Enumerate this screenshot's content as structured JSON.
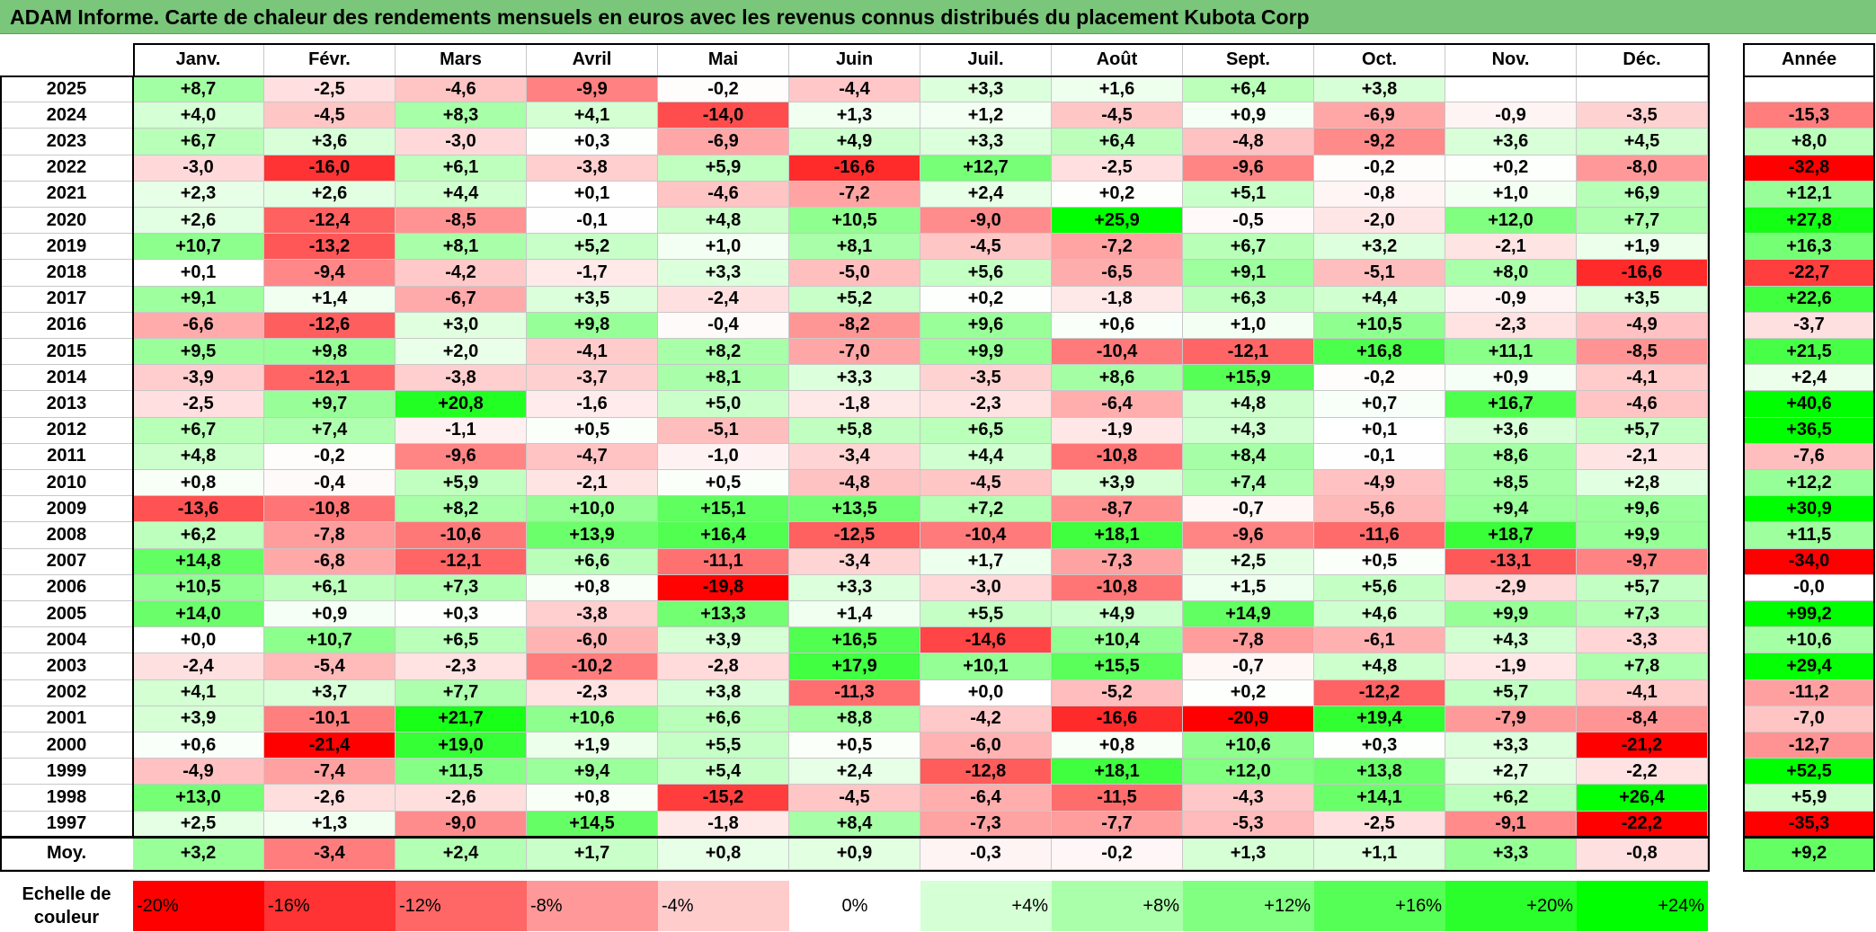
{
  "title": "ADAM Informe. Carte de chaleur des rendements mensuels en euros avec les revenus connus distribués du placement Kubota Corp",
  "chart_data": {
    "type": "heatmap",
    "columns": [
      "Janv.",
      "Févr.",
      "Mars",
      "Avril",
      "Mai",
      "Juin",
      "Juil.",
      "Août",
      "Sept.",
      "Oct.",
      "Nov.",
      "Déc."
    ],
    "year_column_label": "Année",
    "rows": [
      {
        "year": "2025",
        "months": [
          "+8,7",
          "-2,5",
          "-4,6",
          "-9,9",
          "-0,2",
          "-4,4",
          "+3,3",
          "+1,6",
          "+6,4",
          "+3,8",
          "",
          ""
        ],
        "annual": ""
      },
      {
        "year": "2024",
        "months": [
          "+4,0",
          "-4,5",
          "+8,3",
          "+4,1",
          "-14,0",
          "+1,3",
          "+1,2",
          "-4,5",
          "+0,9",
          "-6,9",
          "-0,9",
          "-3,5"
        ],
        "annual": "-15,3"
      },
      {
        "year": "2023",
        "months": [
          "+6,7",
          "+3,6",
          "-3,0",
          "+0,3",
          "-6,9",
          "+4,9",
          "+3,3",
          "+6,4",
          "-4,8",
          "-9,2",
          "+3,6",
          "+4,5"
        ],
        "annual": "+8,0"
      },
      {
        "year": "2022",
        "months": [
          "-3,0",
          "-16,0",
          "+6,1",
          "-3,8",
          "+5,9",
          "-16,6",
          "+12,7",
          "-2,5",
          "-9,6",
          "-0,2",
          "+0,2",
          "-8,0"
        ],
        "annual": "-32,8"
      },
      {
        "year": "2021",
        "months": [
          "+2,3",
          "+2,6",
          "+4,4",
          "+0,1",
          "-4,6",
          "-7,2",
          "+2,4",
          "+0,2",
          "+5,1",
          "-0,8",
          "+1,0",
          "+6,9"
        ],
        "annual": "+12,1"
      },
      {
        "year": "2020",
        "months": [
          "+2,6",
          "-12,4",
          "-8,5",
          "-0,1",
          "+4,8",
          "+10,5",
          "-9,0",
          "+25,9",
          "-0,5",
          "-2,0",
          "+12,0",
          "+7,7"
        ],
        "annual": "+27,8"
      },
      {
        "year": "2019",
        "months": [
          "+10,7",
          "-13,2",
          "+8,1",
          "+5,2",
          "+1,0",
          "+8,1",
          "-4,5",
          "-7,2",
          "+6,7",
          "+3,2",
          "-2,1",
          "+1,9"
        ],
        "annual": "+16,3"
      },
      {
        "year": "2018",
        "months": [
          "+0,1",
          "-9,4",
          "-4,2",
          "-1,7",
          "+3,3",
          "-5,0",
          "+5,6",
          "-6,5",
          "+9,1",
          "-5,1",
          "+8,0",
          "-16,6"
        ],
        "annual": "-22,7"
      },
      {
        "year": "2017",
        "months": [
          "+9,1",
          "+1,4",
          "-6,7",
          "+3,5",
          "-2,4",
          "+5,2",
          "+0,2",
          "-1,8",
          "+6,3",
          "+4,4",
          "-0,9",
          "+3,5"
        ],
        "annual": "+22,6"
      },
      {
        "year": "2016",
        "months": [
          "-6,6",
          "-12,6",
          "+3,0",
          "+9,8",
          "-0,4",
          "-8,2",
          "+9,6",
          "+0,6",
          "+1,0",
          "+10,5",
          "-2,3",
          "-4,9"
        ],
        "annual": "-3,7"
      },
      {
        "year": "2015",
        "months": [
          "+9,5",
          "+9,8",
          "+2,0",
          "-4,1",
          "+8,2",
          "-7,0",
          "+9,9",
          "-10,4",
          "-12,1",
          "+16,8",
          "+11,1",
          "-8,5"
        ],
        "annual": "+21,5"
      },
      {
        "year": "2014",
        "months": [
          "-3,9",
          "-12,1",
          "-3,8",
          "-3,7",
          "+8,1",
          "+3,3",
          "-3,5",
          "+8,6",
          "+15,9",
          "-0,2",
          "+0,9",
          "-4,1"
        ],
        "annual": "+2,4"
      },
      {
        "year": "2013",
        "months": [
          "-2,5",
          "+9,7",
          "+20,8",
          "-1,6",
          "+5,0",
          "-1,8",
          "-2,3",
          "-6,4",
          "+4,8",
          "+0,7",
          "+16,7",
          "-4,6"
        ],
        "annual": "+40,6"
      },
      {
        "year": "2012",
        "months": [
          "+6,7",
          "+7,4",
          "-1,1",
          "+0,5",
          "-5,1",
          "+5,8",
          "+6,5",
          "-1,9",
          "+4,3",
          "+0,1",
          "+3,6",
          "+5,7"
        ],
        "annual": "+36,5"
      },
      {
        "year": "2011",
        "months": [
          "+4,8",
          "-0,2",
          "-9,6",
          "-4,7",
          "-1,0",
          "-3,4",
          "+4,4",
          "-10,8",
          "+8,4",
          "-0,1",
          "+8,6",
          "-2,1"
        ],
        "annual": "-7,6"
      },
      {
        "year": "2010",
        "months": [
          "+0,8",
          "-0,4",
          "+5,9",
          "-2,1",
          "+0,5",
          "-4,8",
          "-4,5",
          "+3,9",
          "+7,4",
          "-4,9",
          "+8,5",
          "+2,8"
        ],
        "annual": "+12,2"
      },
      {
        "year": "2009",
        "months": [
          "-13,6",
          "-10,8",
          "+8,2",
          "+10,0",
          "+15,1",
          "+13,5",
          "+7,2",
          "-8,7",
          "-0,7",
          "-5,6",
          "+9,4",
          "+9,6"
        ],
        "annual": "+30,9"
      },
      {
        "year": "2008",
        "months": [
          "+6,2",
          "-7,8",
          "-10,6",
          "+13,9",
          "+16,4",
          "-12,5",
          "-10,4",
          "+18,1",
          "-9,6",
          "-11,6",
          "+18,7",
          "+9,9"
        ],
        "annual": "+11,5"
      },
      {
        "year": "2007",
        "months": [
          "+14,8",
          "-6,8",
          "-12,1",
          "+6,6",
          "-11,1",
          "-3,4",
          "+1,7",
          "-7,3",
          "+2,5",
          "+0,5",
          "-13,1",
          "-9,7"
        ],
        "annual": "-34,0"
      },
      {
        "year": "2006",
        "months": [
          "+10,5",
          "+6,1",
          "+7,3",
          "+0,8",
          "-19,8",
          "+3,3",
          "-3,0",
          "-10,8",
          "+1,5",
          "+5,6",
          "-2,9",
          "+5,7"
        ],
        "annual": "-0,0"
      },
      {
        "year": "2005",
        "months": [
          "+14,0",
          "+0,9",
          "+0,3",
          "-3,8",
          "+13,3",
          "+1,4",
          "+5,5",
          "+4,9",
          "+14,9",
          "+4,6",
          "+9,9",
          "+7,3"
        ],
        "annual": "+99,2"
      },
      {
        "year": "2004",
        "months": [
          "+0,0",
          "+10,7",
          "+6,5",
          "-6,0",
          "+3,9",
          "+16,5",
          "-14,6",
          "+10,4",
          "-7,8",
          "-6,1",
          "+4,3",
          "-3,3"
        ],
        "annual": "+10,6"
      },
      {
        "year": "2003",
        "months": [
          "-2,4",
          "-5,4",
          "-2,3",
          "-10,2",
          "-2,8",
          "+17,9",
          "+10,1",
          "+15,5",
          "-0,7",
          "+4,8",
          "-1,9",
          "+7,8"
        ],
        "annual": "+29,4"
      },
      {
        "year": "2002",
        "months": [
          "+4,1",
          "+3,7",
          "+7,7",
          "-2,3",
          "+3,8",
          "-11,3",
          "+0,0",
          "-5,2",
          "+0,2",
          "-12,2",
          "+5,7",
          "-4,1"
        ],
        "annual": "-11,2"
      },
      {
        "year": "2001",
        "months": [
          "+3,9",
          "-10,1",
          "+21,7",
          "+10,6",
          "+6,6",
          "+8,8",
          "-4,2",
          "-16,6",
          "-20,9",
          "+19,4",
          "-7,9",
          "-8,4"
        ],
        "annual": "-7,0"
      },
      {
        "year": "2000",
        "months": [
          "+0,6",
          "-21,4",
          "+19,0",
          "+1,9",
          "+5,5",
          "+0,5",
          "-6,0",
          "+0,8",
          "+10,6",
          "+0,3",
          "+3,3",
          "-21,2"
        ],
        "annual": "-12,7"
      },
      {
        "year": "1999",
        "months": [
          "-4,9",
          "-7,4",
          "+11,5",
          "+9,4",
          "+5,4",
          "+2,4",
          "-12,8",
          "+18,1",
          "+12,0",
          "+13,8",
          "+2,7",
          "-2,2"
        ],
        "annual": "+52,5"
      },
      {
        "year": "1998",
        "months": [
          "+13,0",
          "-2,6",
          "-2,6",
          "+0,8",
          "-15,2",
          "-4,5",
          "-6,4",
          "-11,5",
          "-4,3",
          "+14,1",
          "+6,2",
          "+26,4"
        ],
        "annual": "+5,9"
      },
      {
        "year": "1997",
        "months": [
          "+2,5",
          "+1,3",
          "-9,0",
          "+14,5",
          "-1,8",
          "+8,4",
          "-7,3",
          "-7,7",
          "-5,3",
          "-2,5",
          "-9,1",
          "-22,2"
        ],
        "annual": "-35,3"
      }
    ],
    "average_row": {
      "label": "Moy.",
      "months": [
        "+3,2",
        "-3,4",
        "+2,4",
        "+1,7",
        "+0,8",
        "+0,9",
        "-0,3",
        "-0,2",
        "+1,3",
        "+1,1",
        "+3,3",
        "-0,8"
      ],
      "annual": "+9,2"
    },
    "color_scale": {
      "label": "Echelle de couleur",
      "stops": [
        "-20%",
        "-16%",
        "-12%",
        "-8%",
        "-4%",
        "0%",
        "+4%",
        "+8%",
        "+12%",
        "+16%",
        "+20%",
        "+24%"
      ],
      "stop_values": [
        -20,
        -16,
        -12,
        -8,
        -4,
        0,
        4,
        8,
        12,
        16,
        20,
        24
      ],
      "negative_color": "#ff0000",
      "positive_color": "#00ff00",
      "neutral_color": "#ffffff"
    }
  }
}
